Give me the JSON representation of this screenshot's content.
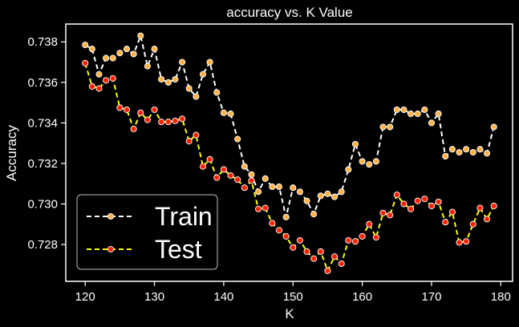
{
  "chart_data": {
    "type": "line",
    "title": "accuracy vs. K Value",
    "xlabel": "K",
    "ylabel": "Accuracy",
    "xlim": [
      117.2,
      181.7
    ],
    "ylim": [
      0.72618,
      0.73888
    ],
    "xticks": [
      120,
      130,
      140,
      150,
      160,
      170,
      180
    ],
    "yticks": [
      0.728,
      0.73,
      0.732,
      0.734,
      0.736,
      0.738
    ],
    "ytick_labels": [
      "0.728",
      "0.730",
      "0.732",
      "0.734",
      "0.736",
      "0.738"
    ],
    "grid": false,
    "legend": {
      "position": "lower-left"
    },
    "x": [
      120,
      121,
      122,
      123,
      124,
      125,
      126,
      127,
      128,
      129,
      130,
      131,
      132,
      133,
      134,
      135,
      136,
      137,
      138,
      139,
      140,
      141,
      142,
      143,
      144,
      145,
      146,
      147,
      148,
      149,
      150,
      151,
      152,
      153,
      154,
      155,
      156,
      157,
      158,
      159,
      160,
      161,
      162,
      163,
      164,
      165,
      166,
      167,
      168,
      169,
      170,
      171,
      172,
      173,
      174,
      175,
      176,
      177,
      178,
      179
    ],
    "series": [
      {
        "name": "Train",
        "line_color": "#ffffff",
        "marker_color": "#ffb347",
        "dash": "6,4",
        "values": [
          0.73785,
          0.73765,
          0.7364,
          0.7372,
          0.7372,
          0.73745,
          0.73765,
          0.7374,
          0.7383,
          0.7368,
          0.73765,
          0.73615,
          0.736,
          0.73615,
          0.737,
          0.7357,
          0.7353,
          0.7364,
          0.737,
          0.7355,
          0.7345,
          0.73445,
          0.7332,
          0.73185,
          0.73145,
          0.7306,
          0.73125,
          0.73085,
          0.73085,
          0.72935,
          0.7308,
          0.7306,
          0.73015,
          0.7295,
          0.7304,
          0.7305,
          0.73035,
          0.7306,
          0.7317,
          0.73295,
          0.7321,
          0.73195,
          0.7321,
          0.7338,
          0.7338,
          0.73465,
          0.73465,
          0.73445,
          0.73445,
          0.73465,
          0.734,
          0.73445,
          0.73235,
          0.7327,
          0.73255,
          0.7327,
          0.73255,
          0.7327,
          0.7325,
          0.7338
        ]
      },
      {
        "name": "Test",
        "line_color": "#ffff00",
        "marker_color": "#ff2200",
        "dash": "6,4",
        "values": [
          0.73695,
          0.7358,
          0.7357,
          0.7361,
          0.7362,
          0.73475,
          0.73465,
          0.7337,
          0.7345,
          0.73415,
          0.73465,
          0.73405,
          0.73405,
          0.7341,
          0.7342,
          0.7331,
          0.7334,
          0.73185,
          0.7322,
          0.7313,
          0.7317,
          0.7314,
          0.7312,
          0.7308,
          0.73115,
          0.72975,
          0.7298,
          0.72905,
          0.7287,
          0.7284,
          0.72785,
          0.7282,
          0.72765,
          0.7273,
          0.72765,
          0.7267,
          0.7274,
          0.72705,
          0.7282,
          0.72815,
          0.7284,
          0.729,
          0.72835,
          0.72955,
          0.72945,
          0.73045,
          0.73,
          0.72975,
          0.73015,
          0.73025,
          0.7299,
          0.7301,
          0.7291,
          0.7296,
          0.7281,
          0.72815,
          0.729,
          0.7298,
          0.72925,
          0.7299
        ]
      }
    ]
  }
}
